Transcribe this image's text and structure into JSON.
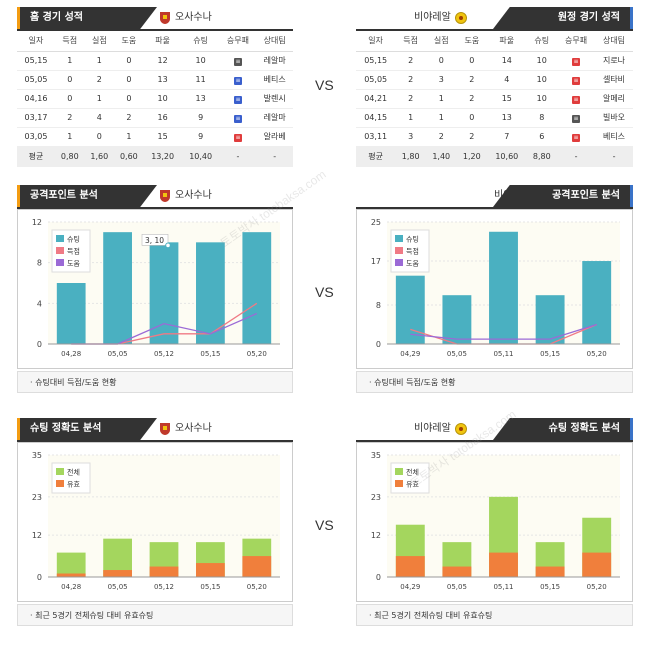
{
  "home_team": "오사수나",
  "away_team": "비야레알",
  "vs_label": "VS",
  "home_results": {
    "title": "홈 경기 성적",
    "columns": [
      "일자",
      "득점",
      "실점",
      "도움",
      "파울",
      "슈팅",
      "승무패",
      "상대팀"
    ],
    "rows": [
      {
        "date": "05,15",
        "gf": "1",
        "ga": "1",
        "ast": "0",
        "foul": "12",
        "shot": "10",
        "res": "무",
        "res_color": "#555555",
        "opp": "레알마"
      },
      {
        "date": "05,05",
        "gf": "0",
        "ga": "2",
        "ast": "0",
        "foul": "13",
        "shot": "11",
        "res": "패",
        "res_color": "#3a5fcd",
        "opp": "베티스"
      },
      {
        "date": "04,16",
        "gf": "0",
        "ga": "1",
        "ast": "0",
        "foul": "10",
        "shot": "13",
        "res": "패",
        "res_color": "#3a5fcd",
        "opp": "발렌시"
      },
      {
        "date": "03,17",
        "gf": "2",
        "ga": "4",
        "ast": "2",
        "foul": "16",
        "shot": "9",
        "res": "패",
        "res_color": "#3a5fcd",
        "opp": "레알마"
      },
      {
        "date": "03,05",
        "gf": "1",
        "ga": "0",
        "ast": "1",
        "foul": "15",
        "shot": "9",
        "res": "승",
        "res_color": "#e03c3c",
        "opp": "알라베"
      }
    ],
    "avg": {
      "label": "평균",
      "gf": "0,80",
      "ga": "1,60",
      "ast": "0,60",
      "foul": "13,20",
      "shot": "10,40",
      "res": "-",
      "opp": "-"
    }
  },
  "away_results": {
    "title": "원정 경기 성적",
    "columns": [
      "일자",
      "득점",
      "실점",
      "도움",
      "파울",
      "슈팅",
      "승무패",
      "상대팀"
    ],
    "rows": [
      {
        "date": "05,15",
        "gf": "2",
        "ga": "0",
        "ast": "0",
        "foul": "14",
        "shot": "10",
        "res": "승",
        "res_color": "#e03c3c",
        "opp": "지로나"
      },
      {
        "date": "05,05",
        "gf": "2",
        "ga": "3",
        "ast": "2",
        "foul": "4",
        "shot": "10",
        "res": "승",
        "res_color": "#e03c3c",
        "opp": "셀타비"
      },
      {
        "date": "04,21",
        "gf": "2",
        "ga": "1",
        "ast": "2",
        "foul": "15",
        "shot": "10",
        "res": "승",
        "res_color": "#e03c3c",
        "opp": "알메리"
      },
      {
        "date": "04,15",
        "gf": "1",
        "ga": "1",
        "ast": "0",
        "foul": "13",
        "shot": "8",
        "res": "무",
        "res_color": "#555555",
        "opp": "빌바오"
      },
      {
        "date": "03,11",
        "gf": "3",
        "ga": "2",
        "ast": "2",
        "foul": "7",
        "shot": "6",
        "res": "승",
        "res_color": "#e03c3c",
        "opp": "베티스"
      }
    ],
    "avg": {
      "label": "평균",
      "gf": "1,80",
      "ga": "1,40",
      "ast": "1,20",
      "foul": "10,60",
      "shot": "8,80",
      "res": "-",
      "opp": "-"
    }
  },
  "attack": {
    "title": "공격포인트 분석",
    "caption": "슈팅대비 득점/도움 현황",
    "legend": [
      "슈팅",
      "득점",
      "도움"
    ]
  },
  "accuracy": {
    "title": "슈팅 정확도 분석",
    "caption": "최근 5경기 전체슈팅 대비 유효슈팅",
    "legend": [
      "전체",
      "유효"
    ]
  },
  "colors": {
    "shots": "#4ab0c1",
    "goals": "#f07a85",
    "assists": "#9b6ad6",
    "total": "#a4d65e",
    "on_target": "#f07f3c",
    "dark": "#333333",
    "home_accent": "#f39c12",
    "away_accent": "#3a73c8"
  },
  "tooltip": "3, 10",
  "watermark": "토토박사 totobaksa.com",
  "chart_data": [
    {
      "type": "bar",
      "name": "home-attack",
      "categories": [
        "04,28",
        "05,05",
        "05,12",
        "05,15",
        "05,20"
      ],
      "ylim": [
        0,
        12
      ],
      "yticks": [
        0,
        4,
        8,
        12
      ],
      "series": [
        {
          "name": "슈팅",
          "values": [
            6,
            11,
            10,
            10,
            11
          ]
        },
        {
          "name": "득점",
          "values": [
            0,
            0,
            1,
            1,
            4
          ]
        },
        {
          "name": "도움",
          "values": [
            0,
            0,
            2,
            1,
            3
          ]
        }
      ]
    },
    {
      "type": "bar",
      "name": "away-attack",
      "categories": [
        "04,29",
        "05,05",
        "05,11",
        "05,15",
        "05,20"
      ],
      "ylim": [
        0,
        25
      ],
      "yticks": [
        0,
        8,
        17,
        25
      ],
      "series": [
        {
          "name": "슈팅",
          "values": [
            14,
            10,
            23,
            10,
            17
          ]
        },
        {
          "name": "득점",
          "values": [
            3,
            0,
            0,
            0,
            4
          ]
        },
        {
          "name": "도움",
          "values": [
            2,
            1,
            1,
            1,
            4
          ]
        }
      ]
    },
    {
      "type": "bar",
      "name": "home-accuracy",
      "categories": [
        "04,28",
        "05,05",
        "05,12",
        "05,15",
        "05,20"
      ],
      "ylim": [
        0,
        35
      ],
      "yticks": [
        0,
        12,
        23,
        35
      ],
      "series": [
        {
          "name": "전체",
          "values": [
            7,
            11,
            10,
            10,
            11
          ]
        },
        {
          "name": "유효",
          "values": [
            1,
            2,
            3,
            4,
            6
          ]
        }
      ]
    },
    {
      "type": "bar",
      "name": "away-accuracy",
      "categories": [
        "04,29",
        "05,05",
        "05,11",
        "05,15",
        "05,20"
      ],
      "ylim": [
        0,
        35
      ],
      "yticks": [
        0,
        12,
        23,
        35
      ],
      "series": [
        {
          "name": "전체",
          "values": [
            15,
            10,
            23,
            10,
            17
          ]
        },
        {
          "name": "유효",
          "values": [
            6,
            3,
            7,
            3,
            7
          ]
        }
      ]
    }
  ]
}
